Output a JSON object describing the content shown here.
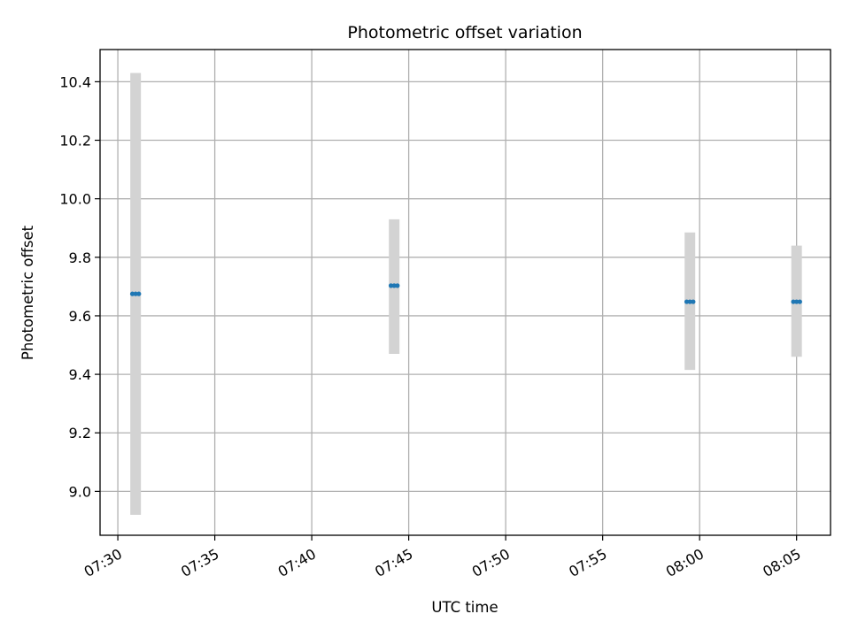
{
  "chart_data": {
    "type": "scatter",
    "title": "Photometric offset variation",
    "xlabel": "UTC time",
    "ylabel": "Photometric offset",
    "x_axis": {
      "kind": "time",
      "range": [
        "07:29:05",
        "08:06:45"
      ],
      "ticks": [
        "07:30",
        "07:35",
        "07:40",
        "07:45",
        "07:50",
        "07:55",
        "08:00",
        "08:05"
      ],
      "tick_rotation_deg": 30
    },
    "y_axis": {
      "range": [
        8.85,
        10.51
      ],
      "ticks": [
        9.0,
        9.2,
        9.4,
        9.6,
        9.8,
        10.0,
        10.2,
        10.4
      ]
    },
    "grid": true,
    "legend": "none",
    "colors": {
      "points": "#1f77b4",
      "error_bars": "#d3d3d3"
    },
    "error_bars": [
      {
        "time": "07:30:55",
        "low": 8.92,
        "high": 10.43
      },
      {
        "time": "07:44:15",
        "low": 9.47,
        "high": 9.93
      },
      {
        "time": "07:59:30",
        "low": 9.415,
        "high": 9.885
      },
      {
        "time": "08:05:00",
        "low": 9.46,
        "high": 9.84
      }
    ],
    "points": [
      {
        "time": "07:30:45",
        "value": 9.675
      },
      {
        "time": "07:30:55",
        "value": 9.675
      },
      {
        "time": "07:31:05",
        "value": 9.675
      },
      {
        "time": "07:44:05",
        "value": 9.703
      },
      {
        "time": "07:44:15",
        "value": 9.703
      },
      {
        "time": "07:44:25",
        "value": 9.703
      },
      {
        "time": "07:59:20",
        "value": 9.648
      },
      {
        "time": "07:59:30",
        "value": 9.648
      },
      {
        "time": "07:59:40",
        "value": 9.648
      },
      {
        "time": "08:04:50",
        "value": 9.648
      },
      {
        "time": "08:05:00",
        "value": 9.648
      },
      {
        "time": "08:05:10",
        "value": 9.648
      }
    ]
  }
}
